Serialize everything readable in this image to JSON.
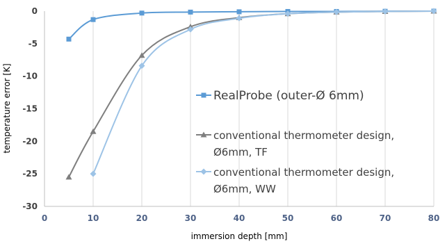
{
  "chart_data": {
    "type": "line",
    "title": "",
    "xlabel": "immersion depth [mm]",
    "ylabel": "temperature error [K]",
    "xlim": [
      0,
      80
    ],
    "ylim": [
      -30,
      0
    ],
    "x_ticks": [
      0,
      10,
      20,
      30,
      40,
      50,
      60,
      70,
      80
    ],
    "y_ticks": [
      0,
      -5,
      -10,
      -15,
      -20,
      -25,
      -30
    ],
    "x_tick_labels": [
      "0",
      "10",
      "20",
      "30",
      "40",
      "50",
      "60",
      "70",
      "80"
    ],
    "y_tick_labels": [
      "0",
      "-5",
      "-10",
      "-15",
      "-20",
      "-25",
      "-30"
    ],
    "grid": "vertical",
    "legend_position": "right-center",
    "series": [
      {
        "name": "RealProbe (outer-Ø 6mm)",
        "color": "#5b9bd5",
        "marker": "square",
        "x": [
          5,
          10,
          20,
          30,
          40,
          50,
          60,
          70,
          80
        ],
        "y": [
          -4.3,
          -1.3,
          -0.3,
          -0.15,
          -0.1,
          -0.05,
          -0.05,
          -0.02,
          0
        ]
      },
      {
        "name": "conventional thermometer design, Ø6mm, TF",
        "color": "#7f7f7f",
        "marker": "triangle",
        "x": [
          5,
          10,
          20,
          30,
          40,
          50,
          60,
          70,
          80
        ],
        "y": [
          -25.5,
          -18.5,
          -6.8,
          -2.4,
          -1.0,
          -0.4,
          -0.15,
          -0.05,
          0
        ]
      },
      {
        "name": "conventional thermometer design, Ø6mm, WW",
        "color": "#9dc3e6",
        "marker": "diamond",
        "x": [
          10,
          20,
          30,
          40,
          50,
          60,
          70,
          80
        ],
        "y": [
          -25.0,
          -8.4,
          -2.8,
          -1.1,
          -0.4,
          -0.15,
          -0.05,
          0
        ]
      }
    ],
    "legend": [
      {
        "lines": [
          "RealProbe (outer-Ø 6mm)"
        ]
      },
      {
        "lines": [
          "conventional thermometer design,",
          "Ø6mm, TF"
        ]
      },
      {
        "lines": [
          "conventional thermometer design,",
          "Ø6mm, WW"
        ]
      }
    ]
  }
}
